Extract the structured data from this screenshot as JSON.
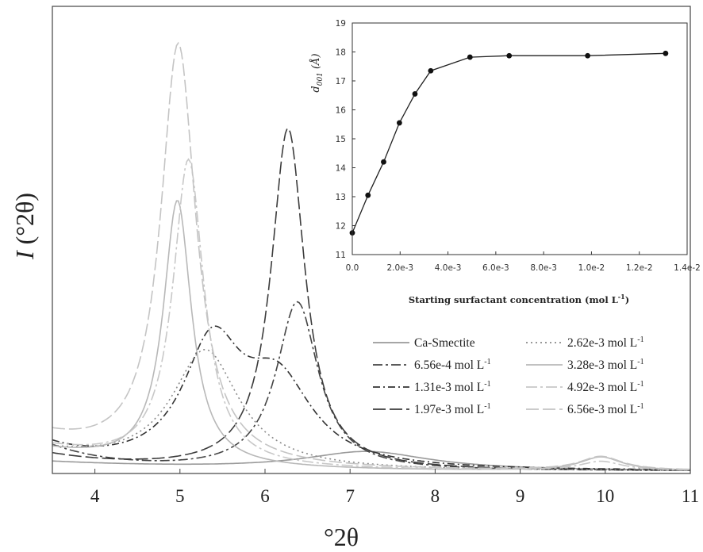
{
  "chart_data": [
    {
      "type": "line",
      "xlabel": "°2θ",
      "ylabel_italic": "I",
      "ylabel_rest": " (°2θ)",
      "xlim": [
        3.5,
        11
      ],
      "ylim": [
        0,
        100
      ],
      "xticks": [
        "4",
        "5",
        "6",
        "7",
        "8",
        "9",
        "10",
        "11"
      ],
      "grid": false,
      "legend_position": "right-middle",
      "series": [
        {
          "name": "Ca-Smectite",
          "color": "#9a9a9a",
          "dash": "",
          "peaks": [
            {
              "center": 7.2,
              "height": 4,
              "width": 0.9
            }
          ],
          "baseline": 2.0,
          "decay": 0.5
        },
        {
          "name": "6.56e-4 mol L",
          "superscript": "-1",
          "color": "#444444",
          "dash": "12,4,3,4",
          "peaks": [
            {
              "center": 6.38,
              "height": 37,
              "width": 0.3
            }
          ],
          "baseline": 5.5,
          "decay": 1.3
        },
        {
          "name": "1.31e-3 mol L",
          "superscript": "-1",
          "color": "#333333",
          "dash": "9,4,2,4",
          "peaks": [
            {
              "center": 5.38,
              "height": 26,
              "width": 0.42
            },
            {
              "center": 6.15,
              "height": 18,
              "width": 0.5
            }
          ],
          "baseline": 5.0,
          "decay": 1.5
        },
        {
          "name": "1.97e-3 mol L",
          "superscript": "-1",
          "color": "#3c3c3c",
          "dash": "16,5",
          "peaks": [
            {
              "center": 6.27,
              "height": 75,
              "width": 0.24
            }
          ],
          "baseline": 3.5,
          "decay": 1.0
        },
        {
          "name": "2.62e-3 mol L",
          "superscript": "-1",
          "color": "#8a8a8a",
          "dash": "2,4",
          "peaks": [
            {
              "center": 5.3,
              "height": 26,
              "width": 0.48
            }
          ],
          "baseline": 4.0,
          "decay": 1.0
        },
        {
          "name": "3.28e-3 mol L",
          "superscript": "-1",
          "color": "#b8b8b8",
          "dash": "",
          "peaks": [
            {
              "center": 4.97,
              "height": 58,
              "width": 0.2
            },
            {
              "center": 9.95,
              "height": 3,
              "width": 0.3
            }
          ],
          "baseline": 4.5,
          "decay": 0.8
        },
        {
          "name": "4.92e-3 mol L",
          "superscript": "-1",
          "color": "#c8c8c8",
          "dash": "14,4,3,4",
          "peaks": [
            {
              "center": 5.1,
              "height": 67,
              "width": 0.22
            },
            {
              "center": 9.95,
              "height": 2,
              "width": 0.3
            }
          ],
          "baseline": 5.0,
          "decay": 0.8
        },
        {
          "name": "6.56e-3 mol L",
          "superscript": "-1",
          "color": "#c4c4c4",
          "dash": "16,5",
          "peaks": [
            {
              "center": 4.98,
              "height": 92,
              "width": 0.25
            },
            {
              "center": 9.95,
              "height": 3,
              "width": 0.3
            }
          ],
          "baseline": 7.0,
          "decay": 0.9
        }
      ]
    },
    {
      "type": "scatter",
      "title": "",
      "xlabel": "Starting surfactant concentration (mol L",
      "xlabel_sup": "-1",
      "xlabel_end": ")",
      "ylabel_main": "d",
      "ylabel_sub": "001",
      "ylabel_unit": " (Å)",
      "xlim": [
        0,
        0.014
      ],
      "ylim": [
        11,
        19
      ],
      "xticks": [
        0,
        0.002,
        0.004,
        0.006,
        0.008,
        0.01,
        0.012,
        0.014
      ],
      "xtick_labels": [
        "0.0",
        "2.0e-3",
        "4.0e-3",
        "6.0e-3",
        "8.0e-3",
        "1.0e-2",
        "1.2e-2",
        "1.4e-2"
      ],
      "yticks": [
        11,
        12,
        13,
        14,
        15,
        16,
        17,
        18,
        19
      ],
      "x": [
        0.0,
        0.000656,
        0.00131,
        0.00197,
        0.00262,
        0.00328,
        0.00492,
        0.00656,
        0.00984,
        0.0131
      ],
      "y": [
        11.75,
        13.05,
        14.2,
        15.55,
        16.55,
        17.35,
        17.82,
        17.87,
        17.87,
        17.95
      ]
    }
  ]
}
